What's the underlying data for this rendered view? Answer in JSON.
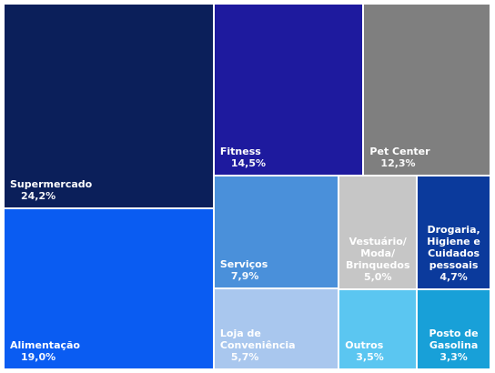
{
  "chart_data": {
    "type": "treemap",
    "categories": [
      "Supermercado",
      "Alimentação",
      "Fitness",
      "Pet Center",
      "Serviços",
      "Vestuário/ Moda/ Brinquedos",
      "Drogaria, Higiene e Cuidados pessoais",
      "Loja de Conveniência",
      "Outros",
      "Posto de Gasolina"
    ],
    "values": [
      24.2,
      19.0,
      14.5,
      12.3,
      7.9,
      5.0,
      4.7,
      5.7,
      3.5,
      3.3
    ],
    "value_labels": [
      "24,2%",
      "19,0%",
      "14,5%",
      "12,3%",
      "7,9%",
      "5,0%",
      "4,7%",
      "5,7%",
      "3,5%",
      "3,3%"
    ],
    "colors": [
      "#0b1f5a",
      "#0a5cf2",
      "#1e1a9e",
      "#7f7f7f",
      "#4a90da",
      "#c6c6c6",
      "#0b3a9c",
      "#a9c7ee",
      "#5bc6f1",
      "#18a0d8"
    ]
  }
}
